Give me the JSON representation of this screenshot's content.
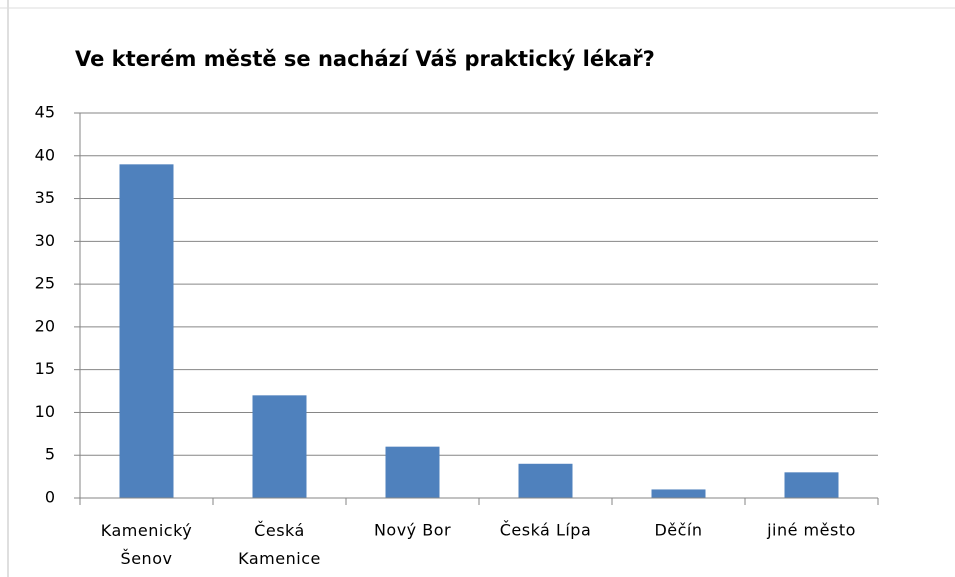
{
  "chart_data": {
    "type": "bar",
    "title": "Ve kterém městě se  nachází Váš praktický lékař?",
    "categories": [
      "Kamenický Šenov",
      "Česká Kamenice",
      "Nový Bor",
      "Česká Lípa",
      "Děčín",
      "jiné město"
    ],
    "values": [
      39,
      12,
      6,
      4,
      1,
      3
    ],
    "color": "#4f81bd",
    "ylim": [
      0,
      45
    ],
    "yticks": [
      0,
      5,
      10,
      15,
      20,
      25,
      30,
      35,
      40,
      45
    ],
    "grid": true
  }
}
